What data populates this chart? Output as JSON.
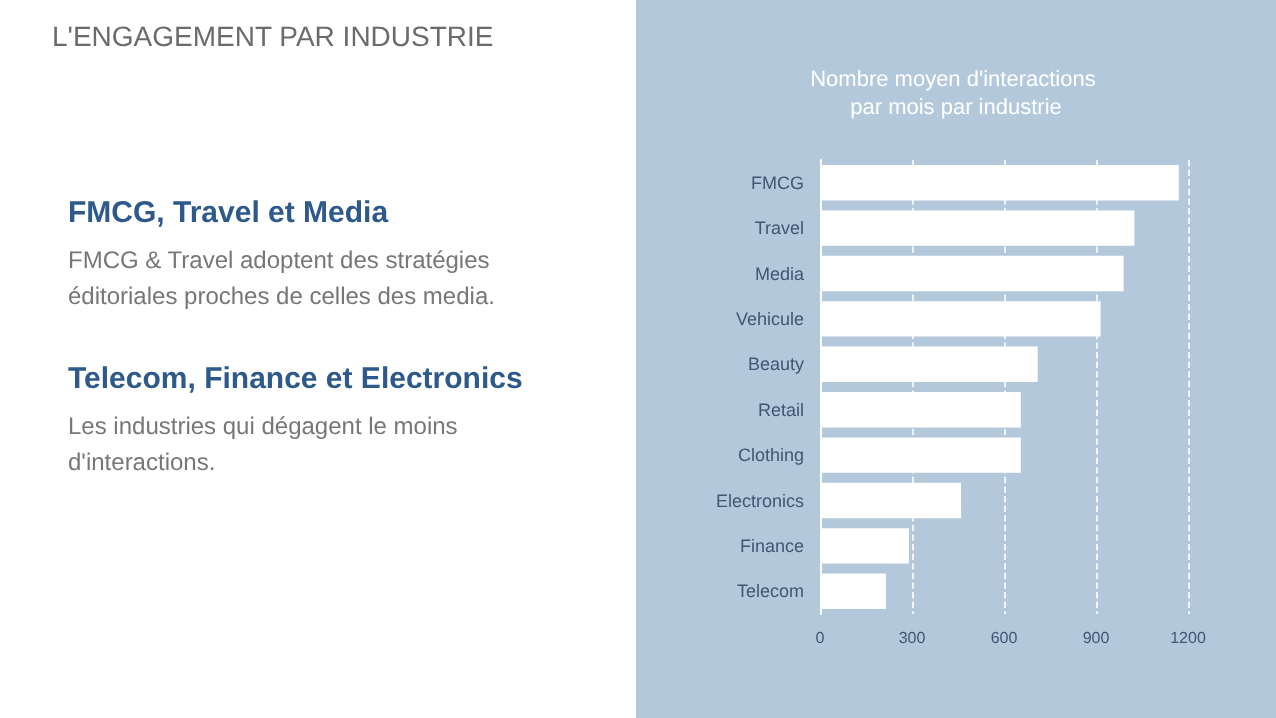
{
  "chart_data": [
    {
      "type": "other",
      "title": "L'ENGAGEMENT PAR INDUSTRIE",
      "annotations": [
        "FMCG, Travel et Media",
        "FMCG & Travel adoptent des stratégies éditoriales proches de celles des media.",
        "Telecom, Finance et Electronics",
        "Les industries qui dégagent le moins d'interactions."
      ]
    },
    {
      "type": "bar",
      "orientation": "horizontal",
      "title": "Nombre moyen d'interactions par mois par industrie",
      "categories": [
        "FMCG",
        "Travel",
        "Media",
        "Vehicule",
        "Beauty",
        "Retail",
        "Clothing",
        "Electronics",
        "Finance",
        "Telecom"
      ],
      "values": [
        1170,
        1025,
        990,
        915,
        710,
        655,
        655,
        460,
        290,
        215
      ],
      "color": "#ffffff",
      "xlim": [
        0,
        1200
      ],
      "xticks": [
        0,
        300,
        600,
        900,
        1200
      ],
      "grid": "x"
    }
  ]
}
